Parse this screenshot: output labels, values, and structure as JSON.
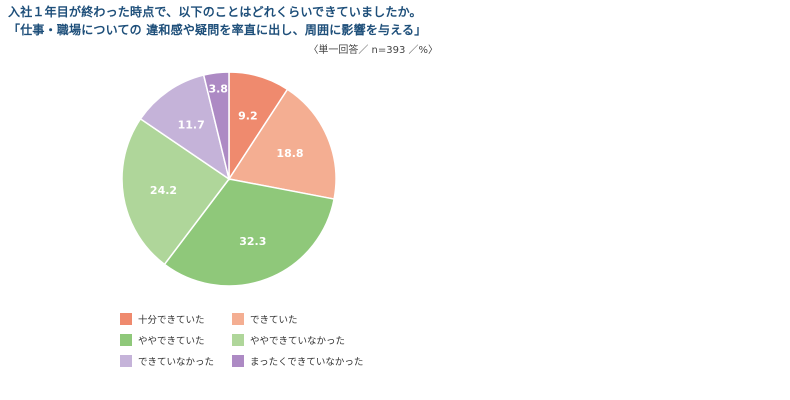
{
  "header": {
    "title_line1": "入社１年目が終わった時点で、以下のことはどれくらいできていましたか。",
    "title_line2": "「仕事・職場についての 違和感や疑問を率直に出し、周囲に影響を与える」",
    "note": "〈単一回答／ n=393 ／%〉"
  },
  "chart_data": {
    "type": "pie",
    "title": "仕事・職場についての違和感や疑問を率直に出し、周囲に影響を与える",
    "unit": "%",
    "n": 393,
    "start": "12 o'clock, clockwise",
    "categories": [
      "十分できていた",
      "できていた",
      "ややできていた",
      "ややできていなかった",
      "できていなかった",
      "まったくできていなかった"
    ],
    "values": [
      9.2,
      18.8,
      32.3,
      24.2,
      11.7,
      3.8
    ],
    "labels": [
      "9.2",
      "18.8",
      "32.3",
      "24.2",
      "11.7",
      "3.8"
    ],
    "colors": [
      "#ef8a6e",
      "#f4ae92",
      "#8fc87a",
      "#afd69a",
      "#c5b3d9",
      "#ad8ac4"
    ]
  }
}
